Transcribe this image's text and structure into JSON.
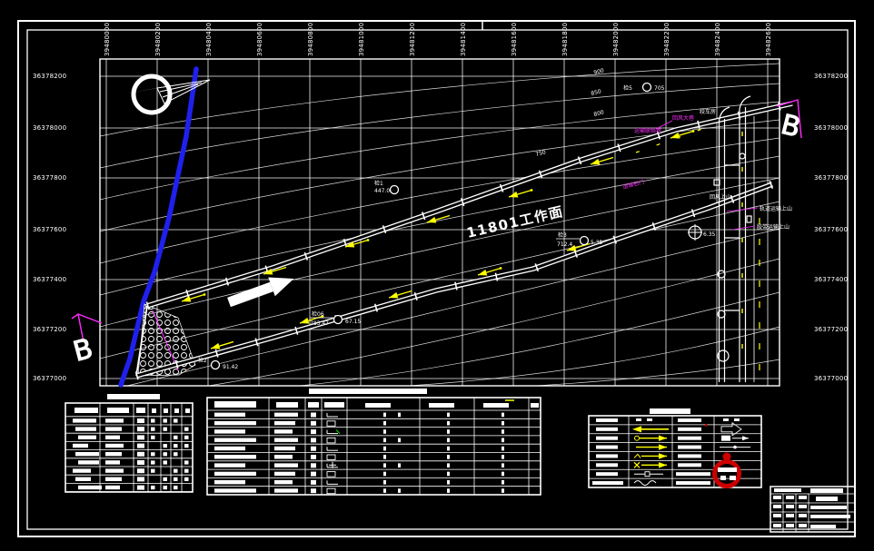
{
  "colors": {
    "background": "#000000",
    "line": "#ffffff",
    "fault_line": "#2020ee",
    "annotation": "#ff2bff",
    "direction_arrow": "#ffff00",
    "mine_logo": "#cc0000"
  },
  "map": {
    "top_labels": [
      "39480000",
      "39480200",
      "39480400",
      "39480600",
      "39480800",
      "39481000",
      "39481200",
      "39481400",
      "39481600",
      "39481800",
      "39482000",
      "39482200",
      "39482400",
      "39482600"
    ],
    "left_labels": [
      "36378200",
      "36378000",
      "36377800",
      "36377600",
      "36377400",
      "36377200",
      "36377000"
    ],
    "right_labels": [
      "36378200",
      "36378000",
      "36377800",
      "36377600",
      "36377400",
      "36377200",
      "36377000"
    ],
    "face_label": "11801工作面",
    "section_marker_top": "B",
    "section_marker_bottom": "B",
    "contour_labels": [
      "900",
      "850",
      "800",
      "750"
    ],
    "boreholes": [
      {
        "name": "检5",
        "value": "705"
      },
      {
        "name": "检1",
        "value": "447.0"
      },
      {
        "name": "检3",
        "value": "712.4",
        "value2": "5.35"
      },
      {
        "name": "检06",
        "value": "783.47",
        "value2": "67.15"
      },
      {
        "name": "检2",
        "value": "91.42"
      },
      {
        "value": "6.35"
      }
    ],
    "roadway_labels": {
      "hoist_room": "绞车房",
      "return_air_main": "回风大巷",
      "transport_link": "运输联络巷",
      "transport_crosscut": "运输石门",
      "return_air_rise": "回风上山",
      "track_rise": "轨道运输上山",
      "belt_rise": "胶带运输上山"
    }
  }
}
